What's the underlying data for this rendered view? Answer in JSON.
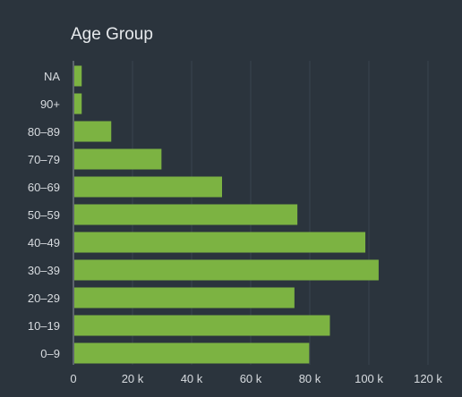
{
  "chart_data": {
    "type": "bar",
    "orientation": "horizontal",
    "title": "Age Group",
    "xlabel": "",
    "ylabel": "",
    "categories": [
      "NA",
      "90+",
      "80–89",
      "70–79",
      "60–69",
      "50–59",
      "40–49",
      "30–39",
      "20–29",
      "10–19",
      "0–9"
    ],
    "values": [
      2500,
      2500,
      12500,
      29500,
      50000,
      75500,
      98500,
      103000,
      74500,
      86500,
      79500
    ],
    "xlim": [
      0,
      125000
    ],
    "xticks": [
      0,
      20000,
      40000,
      60000,
      80000,
      100000,
      120000
    ],
    "xtick_labels": [
      "0",
      "20 k",
      "40 k",
      "60 k",
      "80 k",
      "100 k",
      "120 k"
    ],
    "grid": true,
    "bar_color": "#7cb342",
    "legend": "none"
  }
}
